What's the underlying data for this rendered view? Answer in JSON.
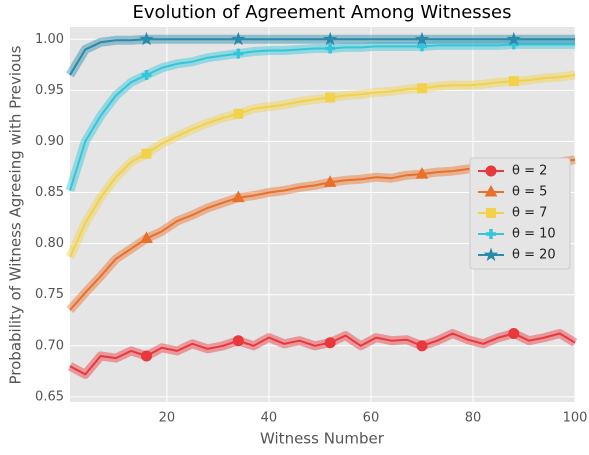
{
  "chart_data": {
    "type": "line",
    "title": "Evolution of Agreement Among Witnesses",
    "xlabel": "Witness Number",
    "ylabel": "Probability of Witness Agreeing with Previous",
    "x": [
      1,
      4,
      7,
      10,
      13,
      16,
      19,
      22,
      25,
      28,
      31,
      34,
      37,
      40,
      43,
      46,
      49,
      52,
      55,
      58,
      61,
      64,
      67,
      70,
      73,
      76,
      79,
      82,
      85,
      88,
      91,
      94,
      97,
      100
    ],
    "xlim": [
      1,
      100
    ],
    "xticks": [
      20,
      40,
      60,
      80,
      100
    ],
    "ylim": [
      0.645,
      1.012
    ],
    "yticks": [
      {
        "value": 0.65,
        "label": "0.65"
      },
      {
        "value": 0.7,
        "label": "0.70"
      },
      {
        "value": 0.75,
        "label": "0.75"
      },
      {
        "value": 0.8,
        "label": "0.80"
      },
      {
        "value": 0.85,
        "label": "0.85"
      },
      {
        "value": 0.9,
        "label": "0.90"
      },
      {
        "value": 0.95,
        "label": "0.95"
      },
      {
        "value": 1.0,
        "label": "1.00"
      }
    ],
    "grid": true,
    "legend": "right",
    "series": [
      {
        "name": "θ = 2",
        "color": "#e8383d",
        "marker": "circle",
        "values": [
          0.68,
          0.672,
          0.69,
          0.688,
          0.695,
          0.69,
          0.698,
          0.695,
          0.702,
          0.697,
          0.7,
          0.705,
          0.7,
          0.708,
          0.702,
          0.705,
          0.7,
          0.703,
          0.71,
          0.7,
          0.708,
          0.705,
          0.706,
          0.7,
          0.705,
          0.712,
          0.706,
          0.702,
          0.708,
          0.712,
          0.705,
          0.708,
          0.712,
          0.703
        ]
      },
      {
        "name": "θ = 5",
        "color": "#e8702a",
        "marker": "triangle",
        "values": [
          0.735,
          0.752,
          0.768,
          0.785,
          0.795,
          0.805,
          0.812,
          0.822,
          0.828,
          0.835,
          0.84,
          0.845,
          0.847,
          0.85,
          0.852,
          0.855,
          0.857,
          0.86,
          0.862,
          0.863,
          0.865,
          0.864,
          0.867,
          0.868,
          0.87,
          0.871,
          0.873,
          0.874,
          0.876,
          0.877,
          0.878,
          0.879,
          0.88,
          0.882
        ]
      },
      {
        "name": "θ = 7",
        "color": "#f2d14b",
        "marker": "square",
        "values": [
          0.787,
          0.82,
          0.845,
          0.865,
          0.88,
          0.888,
          0.898,
          0.905,
          0.912,
          0.918,
          0.923,
          0.927,
          0.932,
          0.934,
          0.936,
          0.939,
          0.941,
          0.943,
          0.945,
          0.946,
          0.948,
          0.949,
          0.951,
          0.952,
          0.954,
          0.955,
          0.955,
          0.956,
          0.958,
          0.959,
          0.96,
          0.962,
          0.963,
          0.965
        ]
      },
      {
        "name": "θ = 10",
        "color": "#33c6d9",
        "marker": "plus",
        "values": [
          0.852,
          0.9,
          0.925,
          0.945,
          0.958,
          0.965,
          0.972,
          0.976,
          0.978,
          0.982,
          0.984,
          0.986,
          0.988,
          0.989,
          0.989,
          0.99,
          0.991,
          0.991,
          0.992,
          0.992,
          0.993,
          0.993,
          0.993,
          0.993,
          0.994,
          0.994,
          0.994,
          0.994,
          0.994,
          0.995,
          0.995,
          0.995,
          0.995,
          0.995
        ]
      },
      {
        "name": "θ = 20",
        "color": "#2a8aaa",
        "marker": "star",
        "values": [
          0.965,
          0.99,
          0.997,
          0.999,
          0.999,
          1.0,
          1.0,
          1.0,
          1.0,
          1.0,
          1.0,
          1.0,
          1.0,
          1.0,
          1.0,
          1.0,
          1.0,
          1.0,
          1.0,
          1.0,
          1.0,
          1.0,
          1.0,
          1.0,
          1.0,
          1.0,
          1.0,
          1.0,
          1.0,
          1.0,
          1.0,
          1.0,
          1.0,
          1.0
        ]
      }
    ]
  }
}
